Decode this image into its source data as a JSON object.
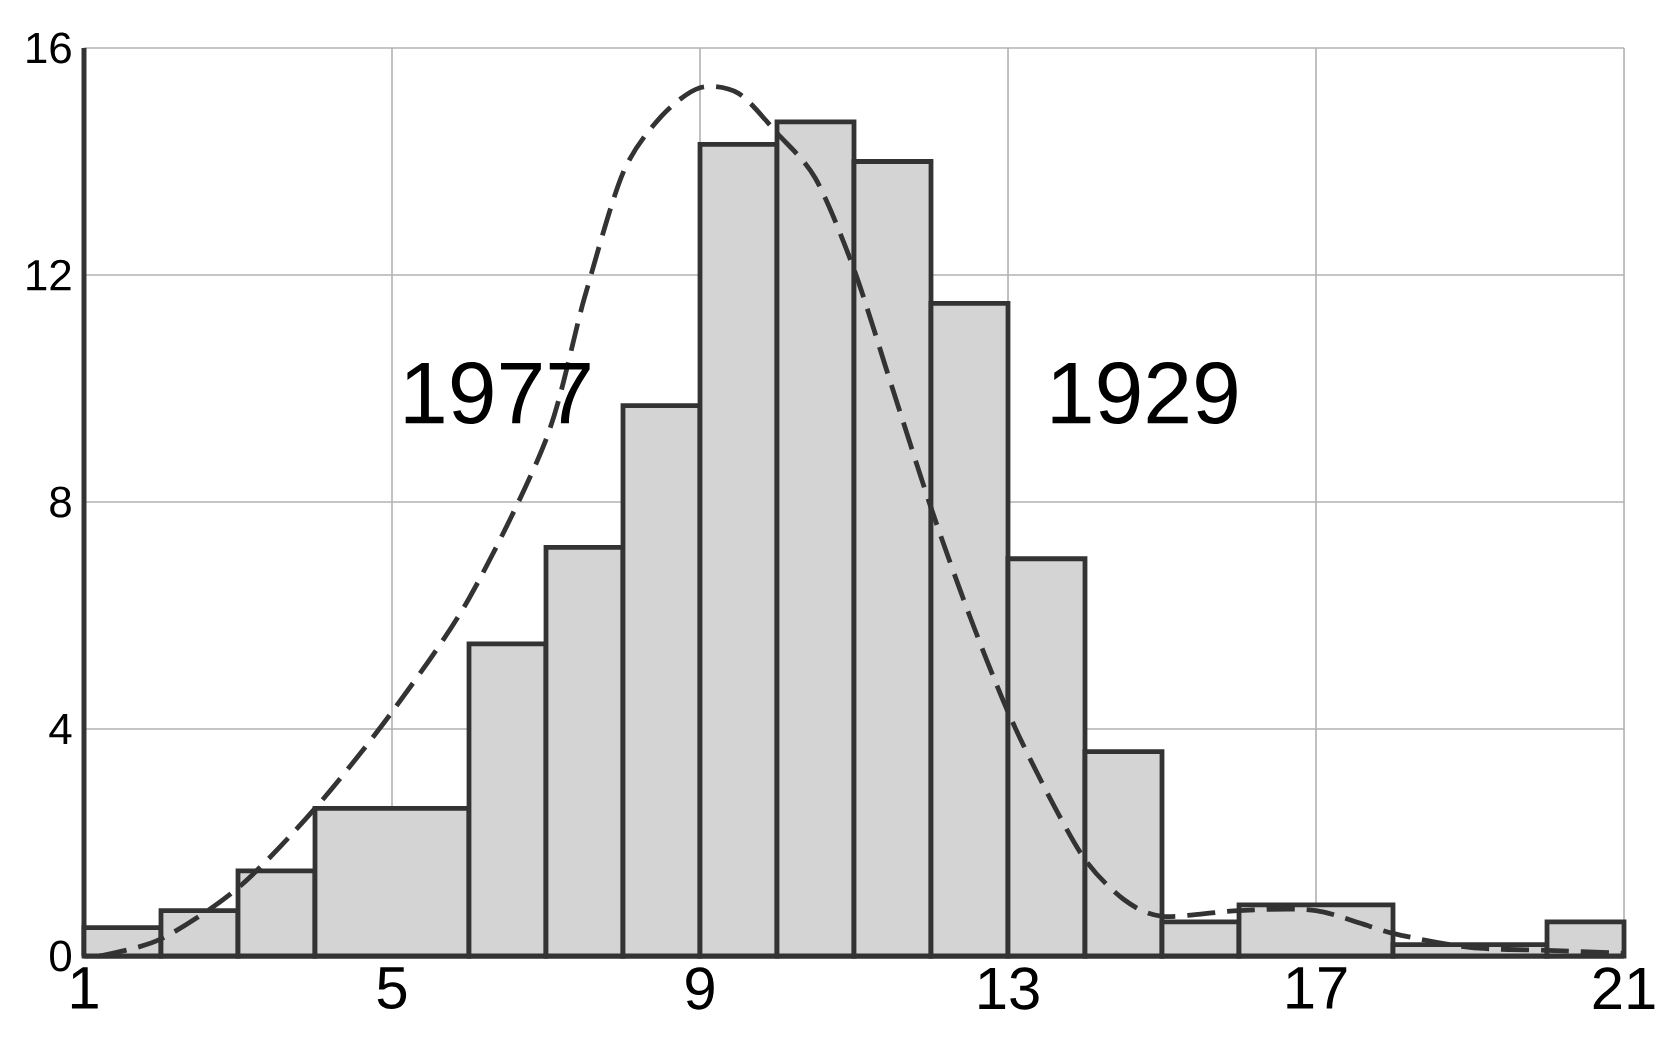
{
  "chart_data": {
    "type": "histogram",
    "xlim": [
      1,
      21
    ],
    "ylim": [
      0,
      16
    ],
    "xticks": [
      1,
      5,
      9,
      13,
      17,
      21
    ],
    "yticks": [
      0,
      4,
      8,
      12,
      16
    ],
    "grid": true,
    "series": [
      {
        "name": "1929",
        "color": "#d4d4d4",
        "bins": [
          1,
          2,
          3,
          4,
          6,
          7,
          8,
          9,
          10,
          11,
          12,
          13,
          14,
          15,
          16,
          18,
          20,
          21
        ],
        "values": [
          0.5,
          0.8,
          1.5,
          2.6,
          5.5,
          7.2,
          9.7,
          14.3,
          14.7,
          14.0,
          11.5,
          7.0,
          3.6,
          0.6,
          0.9,
          0.2,
          0.6
        ]
      },
      {
        "name": "1977",
        "type": "line",
        "color": "#333333",
        "line_style": "dashed",
        "x": [
          1.2,
          2,
          3,
          4,
          5,
          6,
          7,
          7.5,
          8,
          8.5,
          9,
          9.5,
          10,
          10.5,
          11,
          11.5,
          12,
          12.5,
          13,
          13.5,
          14,
          14.5,
          15,
          16,
          17,
          18,
          19,
          20,
          21
        ],
        "values": [
          0,
          0.3,
          1.2,
          2.6,
          4.3,
          6.3,
          9.1,
          11.6,
          13.8,
          14.8,
          15.3,
          15.2,
          14.5,
          13.7,
          12.1,
          10.0,
          7.9,
          6.0,
          4.3,
          2.9,
          1.7,
          1.0,
          0.7,
          0.8,
          0.8,
          0.4,
          0.15,
          0.1,
          0.05
        ]
      }
    ]
  }
}
